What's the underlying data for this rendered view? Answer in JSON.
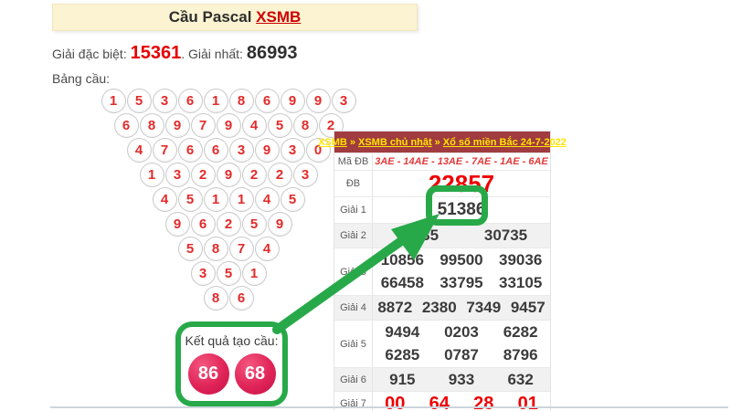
{
  "header": {
    "title_prefix": "Cầu Pascal ",
    "title_link": "XSMB"
  },
  "prizes": {
    "special_label": "Giải đặc biệt: ",
    "special_value": "15361",
    "dot": ". ",
    "first_label": "Giải nhất: ",
    "first_value": "86993",
    "board_label": "Bảng cầu:"
  },
  "triangle": {
    "rows": [
      [
        "1",
        "5",
        "3",
        "6",
        "1",
        "8",
        "6",
        "9",
        "9",
        "3"
      ],
      [
        "6",
        "8",
        "9",
        "7",
        "9",
        "4",
        "5",
        "8",
        "2"
      ],
      [
        "4",
        "7",
        "6",
        "6",
        "3",
        "9",
        "3",
        "0"
      ],
      [
        "1",
        "3",
        "2",
        "9",
        "2",
        "2",
        "3"
      ],
      [
        "4",
        "5",
        "1",
        "1",
        "4",
        "5"
      ],
      [
        "9",
        "6",
        "2",
        "5",
        "9"
      ],
      [
        "5",
        "8",
        "7",
        "4"
      ],
      [
        "3",
        "5",
        "1"
      ],
      [
        "8",
        "6"
      ]
    ]
  },
  "result": {
    "label": "Kết quả tạo cầu:",
    "values": [
      "86",
      "68"
    ]
  },
  "table": {
    "breadcrumb": [
      "XSMB",
      "XSMB chủ nhật",
      "Xổ số miền Bắc 24-7-2022"
    ],
    "separator": "»",
    "rows": [
      {
        "key": "ma",
        "label": "Mã ĐB",
        "lines": [
          [
            "3AE - 14AE - 13AE - 7AE - 1AE - 6AE"
          ]
        ]
      },
      {
        "key": "db",
        "label": "ĐB",
        "lines": [
          [
            "22857"
          ]
        ]
      },
      {
        "key": "g1",
        "label": "Giải 1",
        "lines": [
          [
            "51386"
          ]
        ]
      },
      {
        "key": "g2",
        "label": "Giải 2",
        "lines": [
          [
            "77335",
            "30735"
          ]
        ],
        "stripe": true
      },
      {
        "key": "g3",
        "label": "Giải 3",
        "lines": [
          [
            "10856",
            "99500",
            "39036"
          ],
          [
            "66458",
            "33795",
            "33105"
          ]
        ]
      },
      {
        "key": "g4",
        "label": "Giải 4",
        "lines": [
          [
            "8872",
            "2380",
            "7349",
            "9457"
          ]
        ],
        "stripe": true
      },
      {
        "key": "g5",
        "label": "Giải 5",
        "lines": [
          [
            "9494",
            "0203",
            "6282"
          ],
          [
            "6285",
            "0787",
            "8796"
          ]
        ]
      },
      {
        "key": "g6",
        "label": "Giải 6",
        "lines": [
          [
            "915",
            "933",
            "632"
          ]
        ],
        "stripe": true
      },
      {
        "key": "g7",
        "label": "Giải 7",
        "lines": [
          [
            "00",
            "64",
            "28",
            "01"
          ]
        ]
      }
    ]
  },
  "colors": {
    "annotation_green": "#28a949",
    "banner_bg": "#fbf3d1",
    "table_header_bg": "#a03b40",
    "table_header_link": "#ffe400",
    "red_accent": "#e60000",
    "ball_pink": "#e02458"
  }
}
